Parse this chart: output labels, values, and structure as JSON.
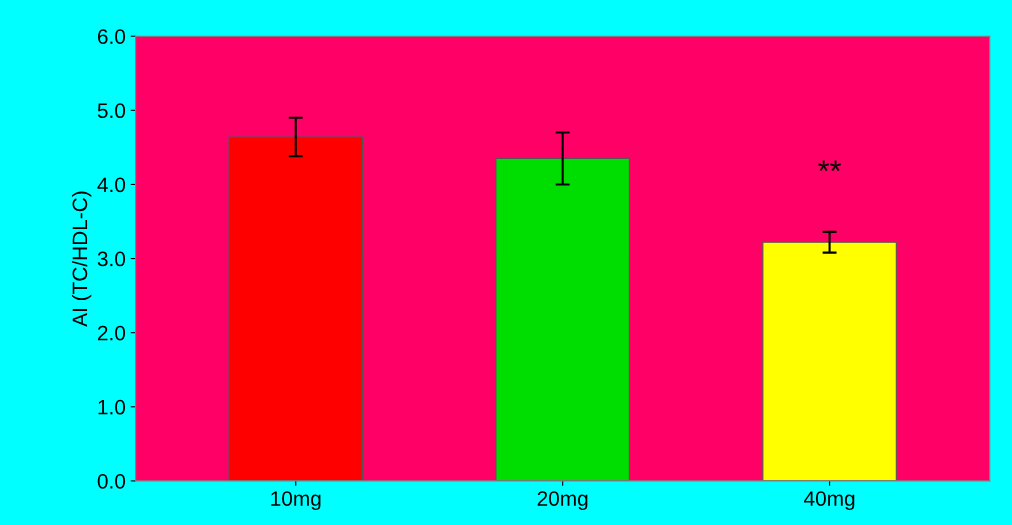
{
  "chart_data": {
    "type": "bar",
    "ylabel": "AI (TC/HDL-C)",
    "categories": [
      "10mg",
      "20mg",
      "40mg"
    ],
    "values": [
      4.64,
      4.35,
      3.22
    ],
    "errors": [
      0.26,
      0.35,
      0.14
    ],
    "colors": [
      "#ff0000",
      "#00dd00",
      "#ffff00"
    ],
    "ylim": [
      0,
      6
    ],
    "yticks": [
      {
        "value": 0,
        "label": "0.0"
      },
      {
        "value": 1,
        "label": "1.0"
      },
      {
        "value": 2,
        "label": "2.0"
      },
      {
        "value": 3,
        "label": "3.0"
      },
      {
        "value": 4,
        "label": "4.0"
      },
      {
        "value": 5,
        "label": "5.0"
      },
      {
        "value": 6,
        "label": "6.0"
      }
    ],
    "annotations": [
      "**"
    ],
    "grid": false,
    "legend": false
  }
}
